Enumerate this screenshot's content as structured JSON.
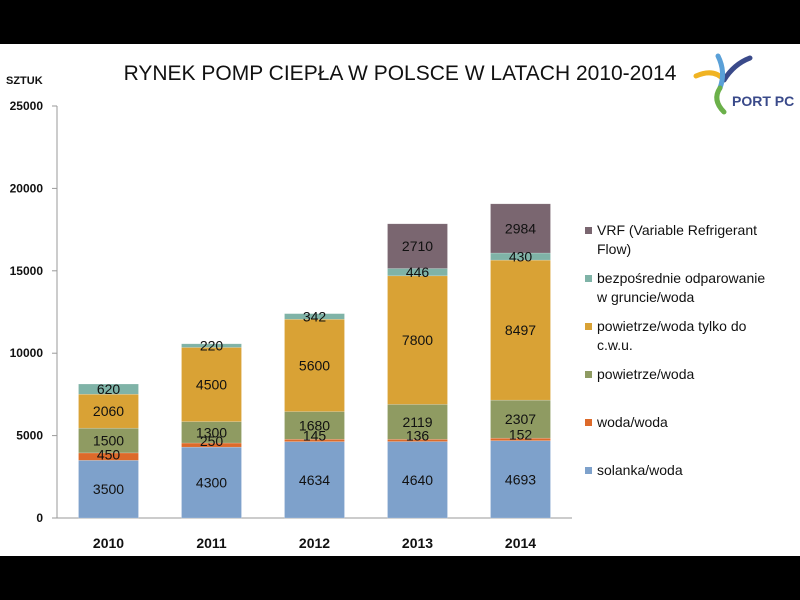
{
  "chart_data": {
    "type": "bar",
    "stacked": true,
    "title": "RYNEK POMP CIEPŁA W POLSCE W LATACH 2010-2014",
    "ylabel": "SZTUK",
    "xlabel": "",
    "ylim": [
      0,
      25000
    ],
    "yticks": [
      "0",
      "5000",
      "10000",
      "15000",
      "20000",
      "25000"
    ],
    "ytick_values": [
      0,
      5000,
      10000,
      15000,
      20000,
      25000
    ],
    "categories": [
      "2010",
      "2011",
      "2012",
      "2013",
      "2014"
    ],
    "grid": false,
    "legend_position": "right",
    "series": [
      {
        "name": "solanka/woda",
        "color": "#7ea1cb",
        "values": [
          3500,
          4300,
          4634,
          4640,
          4693
        ],
        "labels": [
          "3500",
          "4300",
          "4634",
          "4640",
          "4693"
        ]
      },
      {
        "name": "woda/woda",
        "color": "#dd6a2a",
        "values": [
          450,
          250,
          145,
          136,
          152
        ],
        "labels": [
          "450",
          "250",
          "145",
          "136",
          "152"
        ]
      },
      {
        "name": "powietrze/woda",
        "color": "#8f9b62",
        "values": [
          1500,
          1300,
          1680,
          2119,
          2307
        ],
        "labels": [
          "1500",
          "1300",
          "1680",
          "2119",
          "2307"
        ]
      },
      {
        "name": "powietrze/woda tylko do c.w.u.",
        "color": "#d9a235",
        "values": [
          2060,
          4500,
          5600,
          7800,
          8497
        ],
        "labels": [
          "2060",
          "4500",
          "5600",
          "7800",
          "8497"
        ]
      },
      {
        "name": "bezpośrednie odparowanie w gruncie/woda",
        "color": "#7fb3a7",
        "values": [
          620,
          220,
          342,
          446,
          430
        ],
        "labels": [
          "620",
          "220",
          "342",
          "446",
          "430"
        ]
      },
      {
        "name": "VRF (Variable Refrigerant Flow)",
        "color": "#7a6670",
        "values": [
          0,
          0,
          0,
          2710,
          2984
        ],
        "labels": [
          "",
          "",
          "",
          "2710",
          "2984"
        ]
      }
    ]
  },
  "legend_order": [
    5,
    4,
    3,
    2,
    1,
    0
  ],
  "legend_lines": [
    [
      "VRF (Variable Refrigerant",
      "Flow)"
    ],
    [
      "bezpośrednie odparowanie",
      "w gruncie/woda"
    ],
    [
      "powietrze/woda tylko do",
      "c.w.u."
    ],
    [
      "powietrze/woda"
    ],
    [
      "woda/woda"
    ],
    [
      "solanka/woda"
    ]
  ],
  "logo": {
    "text": "PORT PC",
    "colors": [
      "#3a4a8a",
      "#f0b323",
      "#5aa0d8",
      "#6bb04a"
    ]
  }
}
